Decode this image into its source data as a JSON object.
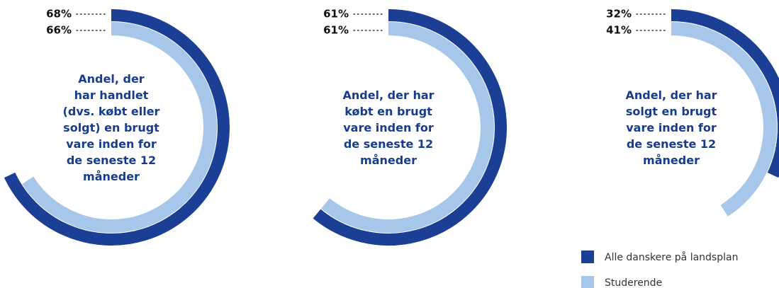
{
  "chart_data": {
    "type": "radial_bar",
    "categories": [
      "Andel, der\nhar handlet\n(dvs. købt eller\nsolgt) en brugt\nvare inden for\nde seneste 12\nmåneder",
      "Andel, der har\nkøbt en brugt\nvare inden for\nde seneste 12\nmåneder",
      "Andel, der har\nsolgt en brugt\nvare inden for\nde seneste 12\nmåneder"
    ],
    "series": [
      {
        "name": "Alle danskere på landsplan",
        "color": "#1b3f94",
        "values": [
          68,
          61,
          32
        ],
        "value_labels": [
          "68%",
          "61%",
          "32%"
        ]
      },
      {
        "name": "Studerende",
        "color": "#a6c7ea",
        "values": [
          66,
          61,
          41
        ],
        "value_labels": [
          "66%",
          "61%",
          "41%"
        ]
      }
    ],
    "ylim": [
      0,
      100
    ],
    "legend": "lower right"
  }
}
